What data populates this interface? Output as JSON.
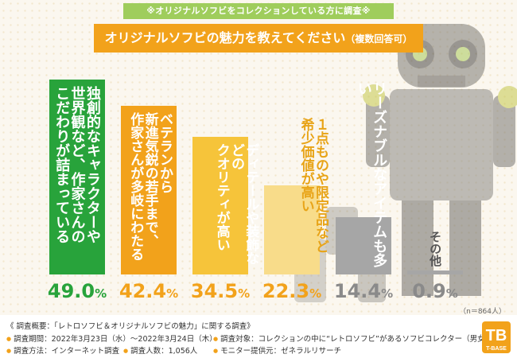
{
  "header": {
    "banner": "※オリジナルソフビをコレクションしている方に調査※",
    "title": "オリジナルソフビの魅力を教えてください",
    "title_suffix": "（複数回答可）"
  },
  "chart_data": {
    "type": "bar",
    "categories": [
      "独創的なキャラクターや\n世界観など、作家さんの\nこだわりが詰まっている",
      "ベテランから\n新進気鋭の若手まで、\n作家さんが多岐にわたる",
      "ディテールや装飾などの\nクオリティが高い",
      "１点ものや限定品など\n希少価値が高い",
      "リーズナブルなアイテムも多い",
      "その他"
    ],
    "values": [
      49.0,
      42.4,
      34.5,
      22.3,
      14.4,
      0.9
    ],
    "value_display": [
      "49.0",
      "42.4",
      "34.5",
      "22.3",
      "14.4",
      "0.9"
    ],
    "unit": "%",
    "ylim": [
      0,
      50
    ],
    "colors": [
      "#28a33b",
      "#f2a21b",
      "#f6c43a",
      "#f8dc8a",
      "#a6a6a6",
      "#a6a6a6"
    ],
    "pct_colors": [
      "#28a33b",
      "#f2a21b",
      "#f2a21b",
      "#f2a21b",
      "#8a8a8a",
      "#8a8a8a"
    ],
    "label_colors": [
      "#ffffff",
      "#ffffff",
      "#ffffff",
      "#e8a418",
      "#ffffff",
      "#555555"
    ],
    "n_note": "（n＝864人）"
  },
  "footer": {
    "heading": "《 調査概要：「レトロソフビ＆オリジナルソフビの魅力」に関する調査》",
    "period": "調査期間：2022年3月23日（水）〜2022年3月24日（木）",
    "method": "調査方法：インターネット調査",
    "count": "調査人数：1,056人",
    "target": "調査対象：コレクションの中に“レトロソフビ”があるソフビコレクター（男女）",
    "provider": "モニター提供元：ゼネラルリサーチ",
    "logo_text": "T-BASE"
  }
}
